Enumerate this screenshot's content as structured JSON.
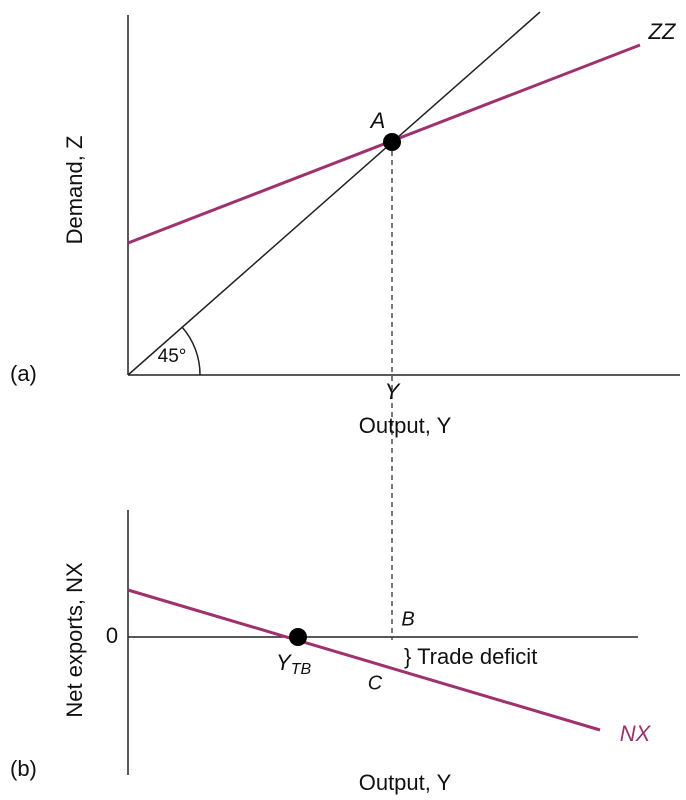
{
  "panel_a": {
    "label": "(a)",
    "y_axis_label": "Demand, Z",
    "x_axis_label": "Output, Y",
    "curve_label": "ZZ",
    "point_label": "A",
    "angle_label": "45°",
    "x_marker": "Y"
  },
  "panel_b": {
    "label": "(b)",
    "y_axis_label": "Net exports, NX",
    "x_axis_label": "Output, Y",
    "zero_label": "0",
    "point_label": {
      "label": "Y",
      "subscript": "TB"
    },
    "upper_label": "B",
    "lower_label": "C",
    "gap_label": "} Trade deficit",
    "curve_label": "NX"
  }
}
